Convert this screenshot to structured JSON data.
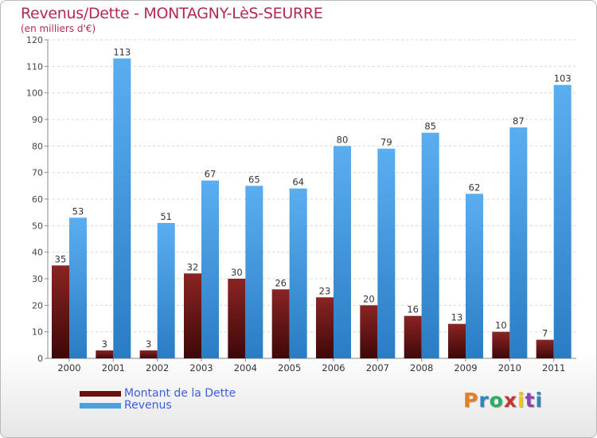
{
  "title": "Revenus/Dette - MONTAGNY-LèS-SEURRE",
  "subtitle": "(en milliers d'€)",
  "logo": {
    "text": "Proxiti",
    "colors": [
      "#e67e22",
      "#2e86c1",
      "#27ae60",
      "#c0392b",
      "#f1c40f",
      "#8e44ad",
      "#2e86c1"
    ]
  },
  "colors": {
    "dette": "#7a1a1a",
    "revenus": "#4a9fe0",
    "title": "#b5284f",
    "legend_text": "#3a5de0"
  },
  "chart_data": {
    "type": "bar",
    "categories": [
      "2000",
      "2001",
      "2002",
      "2003",
      "2004",
      "2005",
      "2006",
      "2007",
      "2008",
      "2009",
      "2010",
      "2011"
    ],
    "series": [
      {
        "name": "Montant de la Dette",
        "values": [
          35,
          3,
          3,
          32,
          30,
          26,
          23,
          20,
          16,
          13,
          10,
          7
        ]
      },
      {
        "name": "Revenus",
        "values": [
          53,
          113,
          51,
          67,
          65,
          64,
          80,
          79,
          85,
          62,
          87,
          103
        ]
      }
    ],
    "ylim": [
      0,
      120
    ],
    "yticks": [
      0,
      10,
      20,
      30,
      40,
      50,
      60,
      70,
      80,
      90,
      100,
      110,
      120
    ],
    "grid": true,
    "legend_position": "bottom-left"
  }
}
